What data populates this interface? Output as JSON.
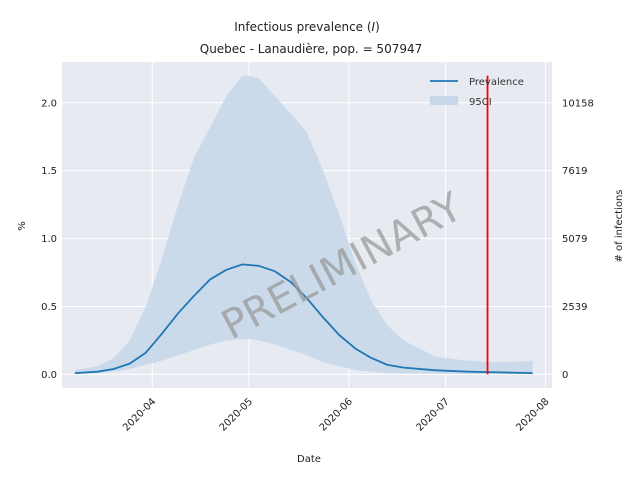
{
  "chart_data": {
    "type": "line",
    "title": "Infectious prevalence (I)",
    "title_main": "Infectious prevalence (",
    "title_var": "I",
    "title_end": ")",
    "subtitle": "Quebec - Lanaudière, pop. = 507947",
    "xlabel": "Date",
    "ylabel": "%",
    "ylabel_right": "# of infections",
    "watermark": "PRELIMINARY",
    "x_ticks": [
      "2020-04",
      "2020-05",
      "2020-06",
      "2020-07",
      "2020-08"
    ],
    "y_ticks": [
      "0.0",
      "0.5",
      "1.0",
      "1.5",
      "2.0"
    ],
    "y_ticks_right": [
      "0",
      "2539",
      "5079",
      "7619",
      "10158"
    ],
    "ylim": [
      -0.1,
      2.3
    ],
    "grid": true,
    "legend_position": "top-right",
    "legend": [
      {
        "label": "Prevalence",
        "kind": "line",
        "color": "#1f77b4"
      },
      {
        "label": "95CI",
        "kind": "band",
        "color": "#c6d7ea"
      }
    ],
    "vline": {
      "date": "2020-07-14",
      "color": "#ff0000",
      "y_from": 0.0,
      "y_to": 2.2
    },
    "series": [
      {
        "name": "Prevalence",
        "color": "#1f77b4",
        "x": [
          "2020-03-08",
          "2020-03-15",
          "2020-03-20",
          "2020-03-25",
          "2020-03-30",
          "2020-04-04",
          "2020-04-09",
          "2020-04-14",
          "2020-04-19",
          "2020-04-24",
          "2020-04-29",
          "2020-05-04",
          "2020-05-09",
          "2020-05-14",
          "2020-05-19",
          "2020-05-24",
          "2020-05-29",
          "2020-06-03",
          "2020-06-08",
          "2020-06-13",
          "2020-06-18",
          "2020-06-28",
          "2020-07-08",
          "2020-07-18",
          "2020-07-28"
        ],
        "values": [
          0.01,
          0.02,
          0.04,
          0.08,
          0.16,
          0.3,
          0.45,
          0.58,
          0.7,
          0.77,
          0.81,
          0.8,
          0.76,
          0.68,
          0.56,
          0.42,
          0.29,
          0.19,
          0.12,
          0.07,
          0.05,
          0.03,
          0.02,
          0.015,
          0.01
        ]
      }
    ],
    "band": {
      "name": "95CI",
      "color": "#c6d7ea",
      "x": [
        "2020-03-08",
        "2020-03-15",
        "2020-03-20",
        "2020-03-25",
        "2020-03-30",
        "2020-04-04",
        "2020-04-09",
        "2020-04-14",
        "2020-04-19",
        "2020-04-24",
        "2020-04-29",
        "2020-05-01",
        "2020-05-04",
        "2020-05-09",
        "2020-05-14",
        "2020-05-19",
        "2020-05-24",
        "2020-05-29",
        "2020-06-03",
        "2020-06-08",
        "2020-06-13",
        "2020-06-18",
        "2020-06-28",
        "2020-07-08",
        "2020-07-18",
        "2020-07-28"
      ],
      "upper": [
        0.03,
        0.06,
        0.12,
        0.25,
        0.5,
        0.85,
        1.25,
        1.6,
        1.82,
        2.05,
        2.2,
        2.2,
        2.18,
        2.05,
        1.92,
        1.78,
        1.5,
        1.18,
        0.82,
        0.54,
        0.36,
        0.25,
        0.13,
        0.1,
        0.09,
        0.1
      ],
      "lower": [
        0.005,
        0.01,
        0.02,
        0.04,
        0.07,
        0.1,
        0.14,
        0.18,
        0.22,
        0.25,
        0.26,
        0.26,
        0.25,
        0.22,
        0.18,
        0.14,
        0.09,
        0.06,
        0.03,
        0.02,
        0.01,
        0.008,
        0.005,
        0.003,
        0.002,
        0.002
      ]
    },
    "colors": {
      "plot_background": "#e8eaf2",
      "grid": "#ffffff",
      "line": "#1f77b4",
      "band": "#c6d7ea",
      "vline": "#ff0000"
    }
  }
}
